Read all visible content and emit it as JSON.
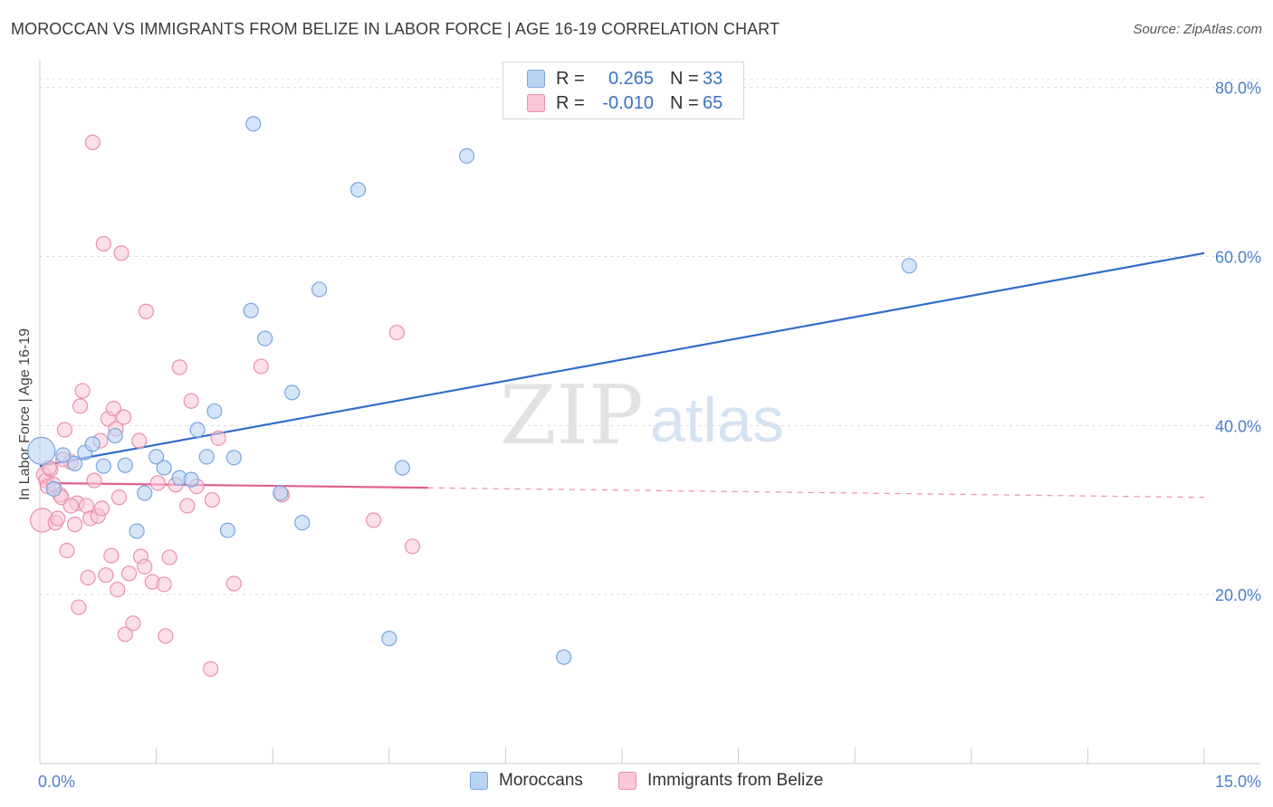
{
  "header": {
    "title": "MOROCCAN VS IMMIGRANTS FROM BELIZE IN LABOR FORCE | AGE 16-19 CORRELATION CHART",
    "source": "Source: ZipAtlas.com"
  },
  "legend": {
    "rows": [
      {
        "r_label": "R =",
        "r_value": "0.265",
        "n_label": "N =",
        "n_value": "33"
      },
      {
        "r_label": "R =",
        "r_value": "-0.010",
        "n_label": "N =",
        "n_value": "65"
      }
    ]
  },
  "watermark": {
    "zip": "ZIP",
    "atlas": "atlas"
  },
  "colors": {
    "moroccans_fill": "#b9d3f4",
    "moroccans_stroke": "#7aa6e0",
    "moroccans_line": "#2f6ccc",
    "belize_fill": "#f9c7d7",
    "belize_stroke": "#ec8fad",
    "belize_line": "#e0628c"
  },
  "chart_data": {
    "type": "scatter",
    "title": "MOROCCAN VS IMMIGRANTS FROM BELIZE IN LABOR FORCE | AGE 16-19 CORRELATION CHART",
    "xlabel": "",
    "ylabel": "In Labor Force | Age 16-19",
    "xlim": [
      0,
      15
    ],
    "ylim": [
      0,
      82
    ],
    "x_tick_labels": [
      {
        "value": 0,
        "label": "0.0%"
      },
      {
        "value": 15,
        "label": "15.0%"
      }
    ],
    "y_tick_labels": [
      {
        "value": 20,
        "label": "20.0%"
      },
      {
        "value": 40,
        "label": "40.0%"
      },
      {
        "value": 60,
        "label": "60.0%"
      },
      {
        "value": 80,
        "label": "80.0%"
      }
    ],
    "grid": true,
    "legend_position": "top-center",
    "series": [
      {
        "name": "Moroccans",
        "R": 0.265,
        "N": 33,
        "trend": {
          "x": [
            0,
            15
          ],
          "y": [
            35.2,
            60.4
          ],
          "dashed_from": null
        },
        "points": [
          {
            "x": 0.02,
            "y": 37.0,
            "big": true
          },
          {
            "x": 0.18,
            "y": 32.5
          },
          {
            "x": 0.3,
            "y": 36.5
          },
          {
            "x": 0.45,
            "y": 35.5
          },
          {
            "x": 0.58,
            "y": 36.8
          },
          {
            "x": 0.68,
            "y": 37.8
          },
          {
            "x": 0.82,
            "y": 35.2
          },
          {
            "x": 0.97,
            "y": 38.8
          },
          {
            "x": 1.1,
            "y": 35.3
          },
          {
            "x": 1.25,
            "y": 27.5
          },
          {
            "x": 1.35,
            "y": 32.0
          },
          {
            "x": 1.5,
            "y": 36.3
          },
          {
            "x": 1.6,
            "y": 35.0
          },
          {
            "x": 1.8,
            "y": 33.8
          },
          {
            "x": 1.95,
            "y": 33.6
          },
          {
            "x": 2.03,
            "y": 39.5
          },
          {
            "x": 2.15,
            "y": 36.3
          },
          {
            "x": 2.25,
            "y": 41.7
          },
          {
            "x": 2.42,
            "y": 27.6
          },
          {
            "x": 2.5,
            "y": 36.2
          },
          {
            "x": 2.72,
            "y": 53.6
          },
          {
            "x": 2.75,
            "y": 75.7
          },
          {
            "x": 2.9,
            "y": 50.3
          },
          {
            "x": 3.1,
            "y": 32.0
          },
          {
            "x": 3.25,
            "y": 43.9
          },
          {
            "x": 3.38,
            "y": 28.5
          },
          {
            "x": 3.6,
            "y": 56.1
          },
          {
            "x": 4.1,
            "y": 67.9
          },
          {
            "x": 4.5,
            "y": 14.8
          },
          {
            "x": 4.67,
            "y": 35.0
          },
          {
            "x": 5.5,
            "y": 71.9
          },
          {
            "x": 6.75,
            "y": 12.6
          },
          {
            "x": 11.2,
            "y": 58.9
          }
        ]
      },
      {
        "name": "Immigrants from Belize",
        "R": -0.01,
        "N": 65,
        "trend": {
          "x": [
            0,
            15
          ],
          "y": [
            33.2,
            31.5
          ],
          "dashed_from": 5.0
        },
        "points": [
          {
            "x": 0.03,
            "y": 28.8,
            "big": true
          },
          {
            "x": 0.05,
            "y": 34.2
          },
          {
            "x": 0.08,
            "y": 33.5
          },
          {
            "x": 0.1,
            "y": 32.8
          },
          {
            "x": 0.14,
            "y": 34.8
          },
          {
            "x": 0.18,
            "y": 33.0
          },
          {
            "x": 0.2,
            "y": 28.5
          },
          {
            "x": 0.23,
            "y": 29.0
          },
          {
            "x": 0.26,
            "y": 31.8
          },
          {
            "x": 0.28,
            "y": 31.5
          },
          {
            "x": 0.32,
            "y": 39.5
          },
          {
            "x": 0.35,
            "y": 25.2
          },
          {
            "x": 0.4,
            "y": 35.7
          },
          {
            "x": 0.45,
            "y": 28.3
          },
          {
            "x": 0.48,
            "y": 30.8
          },
          {
            "x": 0.5,
            "y": 18.5
          },
          {
            "x": 0.52,
            "y": 42.3
          },
          {
            "x": 0.55,
            "y": 44.1
          },
          {
            "x": 0.6,
            "y": 30.5
          },
          {
            "x": 0.62,
            "y": 22.0
          },
          {
            "x": 0.65,
            "y": 29.0
          },
          {
            "x": 0.7,
            "y": 33.5
          },
          {
            "x": 0.68,
            "y": 73.5
          },
          {
            "x": 0.75,
            "y": 29.3
          },
          {
            "x": 0.78,
            "y": 38.2
          },
          {
            "x": 0.8,
            "y": 30.2
          },
          {
            "x": 0.82,
            "y": 61.5
          },
          {
            "x": 0.85,
            "y": 22.3
          },
          {
            "x": 0.88,
            "y": 40.8
          },
          {
            "x": 0.92,
            "y": 24.6
          },
          {
            "x": 0.95,
            "y": 42.0
          },
          {
            "x": 0.98,
            "y": 39.6
          },
          {
            "x": 1.0,
            "y": 20.6
          },
          {
            "x": 1.02,
            "y": 31.5
          },
          {
            "x": 1.05,
            "y": 60.4
          },
          {
            "x": 1.08,
            "y": 41.0
          },
          {
            "x": 1.1,
            "y": 15.3
          },
          {
            "x": 1.15,
            "y": 22.5
          },
          {
            "x": 1.2,
            "y": 16.6
          },
          {
            "x": 1.28,
            "y": 38.2
          },
          {
            "x": 1.3,
            "y": 24.5
          },
          {
            "x": 1.35,
            "y": 23.3
          },
          {
            "x": 1.37,
            "y": 53.5
          },
          {
            "x": 1.45,
            "y": 21.5
          },
          {
            "x": 1.52,
            "y": 33.2
          },
          {
            "x": 1.6,
            "y": 21.2
          },
          {
            "x": 1.62,
            "y": 15.1
          },
          {
            "x": 1.67,
            "y": 24.4
          },
          {
            "x": 1.75,
            "y": 33.0
          },
          {
            "x": 1.8,
            "y": 46.9
          },
          {
            "x": 1.9,
            "y": 30.5
          },
          {
            "x": 1.95,
            "y": 42.9
          },
          {
            "x": 2.02,
            "y": 32.8
          },
          {
            "x": 2.2,
            "y": 11.2
          },
          {
            "x": 2.22,
            "y": 31.2
          },
          {
            "x": 2.3,
            "y": 38.5
          },
          {
            "x": 2.5,
            "y": 21.3
          },
          {
            "x": 2.85,
            "y": 47.0
          },
          {
            "x": 3.12,
            "y": 31.8
          },
          {
            "x": 4.3,
            "y": 28.8
          },
          {
            "x": 4.6,
            "y": 51.0
          },
          {
            "x": 4.8,
            "y": 25.7
          },
          {
            "x": 0.12,
            "y": 35.0
          },
          {
            "x": 0.4,
            "y": 30.5
          },
          {
            "x": 0.3,
            "y": 36.0
          }
        ]
      }
    ]
  }
}
